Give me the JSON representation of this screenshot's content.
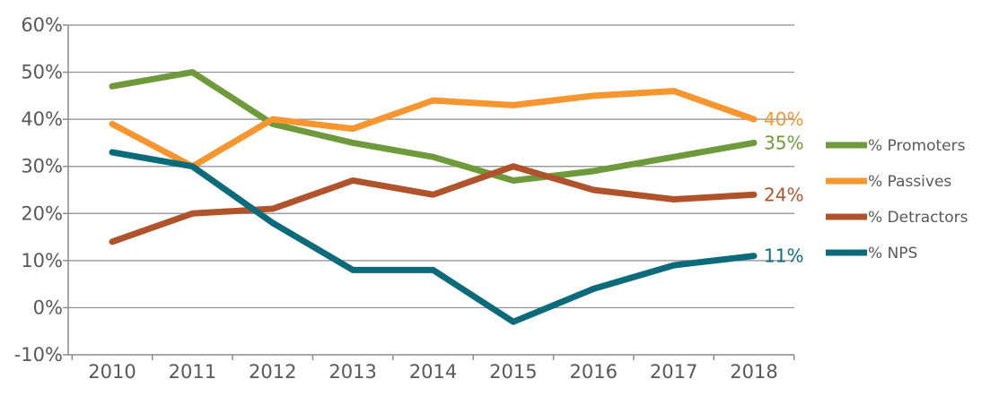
{
  "chart_data": {
    "type": "line",
    "categories": [
      "2010",
      "2011",
      "2012",
      "2013",
      "2014",
      "2015",
      "2016",
      "2017",
      "2018"
    ],
    "ylim": [
      -10,
      60
    ],
    "yticks": [
      -10,
      0,
      10,
      20,
      30,
      40,
      50,
      60
    ],
    "ytick_labels": [
      "-10%",
      "0%",
      "10%",
      "20%",
      "30%",
      "40%",
      "50%",
      "60%"
    ],
    "grid": true,
    "legend_position": "right",
    "series": [
      {
        "name": "% Promoters",
        "color": "#6f9a3c",
        "values": [
          47,
          50,
          39,
          35,
          32,
          27,
          29,
          32,
          35
        ],
        "end_label": "35%"
      },
      {
        "name": "% Passives",
        "color": "#f7962f",
        "values": [
          39,
          30,
          40,
          38,
          44,
          43,
          45,
          46,
          40
        ],
        "end_label": "40%"
      },
      {
        "name": "% Detractors",
        "color": "#b0532a",
        "values": [
          14,
          20,
          21,
          27,
          24,
          30,
          25,
          23,
          24
        ],
        "end_label": "24%"
      },
      {
        "name": "% NPS",
        "color": "#0b6b7a",
        "values": [
          33,
          30,
          18,
          8,
          8,
          -3,
          4,
          9,
          11
        ],
        "end_label": "11%"
      }
    ]
  }
}
